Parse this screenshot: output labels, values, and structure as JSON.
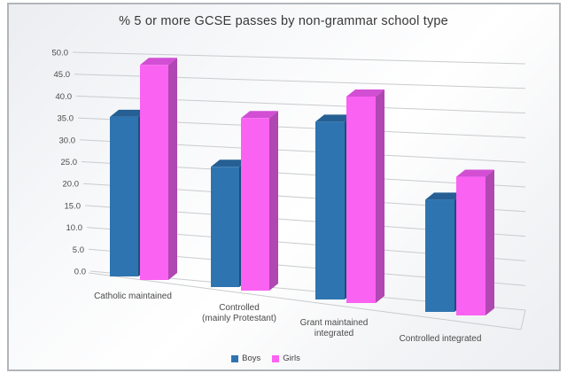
{
  "window": {
    "border_color": "#b2b5b9",
    "background": "#ffffff"
  },
  "chart_data": {
    "type": "bar",
    "variant": "3d-perspective-column",
    "title": "% 5 or more GCSE passes by non-grammar school type",
    "categories": [
      "Catholic maintained",
      "Controlled (mainly Protestant)",
      "Grant maintained integrated",
      "Controlled integrated"
    ],
    "category_lines": [
      [
        "Catholic maintained"
      ],
      [
        "Controlled",
        "(mainly Protestant)"
      ],
      [
        "Grant maintained",
        "integrated"
      ],
      [
        "Controlled integrated"
      ]
    ],
    "series": [
      {
        "name": "Boys",
        "color": "#2e74b0",
        "top_color": "#255f93",
        "side_color": "#1d4e7a",
        "values": [
          34.5,
          23.0,
          34.0,
          17.0
        ]
      },
      {
        "name": "Girls",
        "color": "#fa62f2",
        "top_color": "#d24fd4",
        "side_color": "#b047b2",
        "values": [
          46.5,
          33.0,
          39.5,
          21.0
        ]
      }
    ],
    "ylim": [
      0,
      50
    ],
    "ytick_step": 5,
    "ytick_labels": [
      "0.0",
      "5.0",
      "10.0",
      "15.0",
      "20.0",
      "25.0",
      "30.0",
      "35.0",
      "40.0",
      "45.0",
      "50.0"
    ],
    "grid": true,
    "grid_color": "#c9cbce",
    "axis_text_color": "#4a4a4a",
    "legend_position": "bottom"
  }
}
